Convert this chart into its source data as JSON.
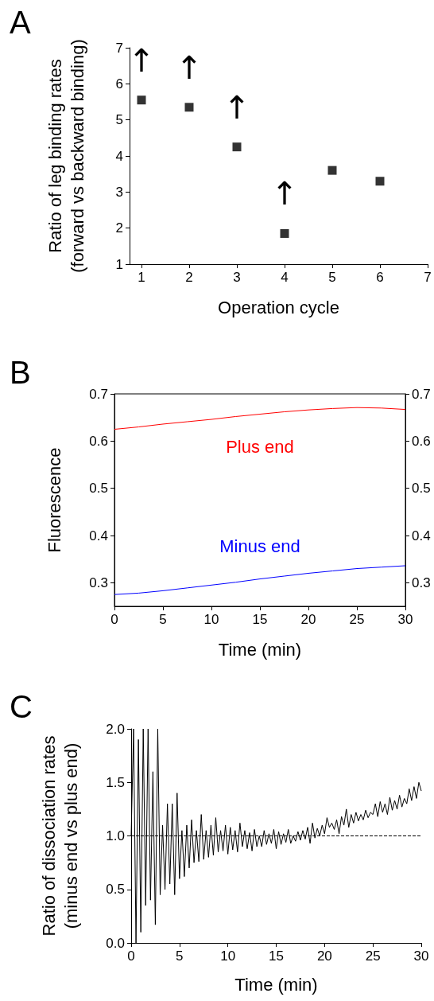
{
  "chart_data": [
    {
      "type": "scatter",
      "title": "A",
      "xlabel": "Operation cycle",
      "ylabel": "Ratio of leg binding rates\n(forward vs backward binding)",
      "x": [
        1,
        2,
        3,
        4,
        5,
        6
      ],
      "series": [
        {
          "color": "#000000",
          "values": [
            5.55,
            5.35,
            4.25,
            1.85,
            3.6,
            3.3
          ]
        }
      ],
      "marker": "square",
      "xlim": [
        0.75,
        7
      ],
      "xticks": [
        1,
        2,
        3,
        4,
        5,
        6,
        7
      ],
      "ylim": [
        1,
        7
      ],
      "yticks": [
        1,
        2,
        3,
        4,
        5,
        6,
        7
      ],
      "grid": false,
      "legend": false,
      "annotations": [
        "↑",
        "↑",
        "↑",
        "↑"
      ]
    },
    {
      "type": "line",
      "title": "B",
      "xlabel": "Time (min)",
      "ylabel": "Fluorescence",
      "series": [
        {
          "name": "Plus end",
          "color": "#ff0000",
          "x": [
            0,
            2.5,
            5,
            7.5,
            10,
            12.5,
            15,
            17.5,
            20,
            22.5,
            25,
            27.5,
            30
          ],
          "values": [
            0.625,
            0.63,
            0.636,
            0.641,
            0.646,
            0.652,
            0.657,
            0.662,
            0.666,
            0.669,
            0.671,
            0.67,
            0.667
          ]
        },
        {
          "name": "Minus end",
          "color": "#0000ff",
          "x": [
            0,
            2.5,
            5,
            7.5,
            10,
            12.5,
            15,
            17.5,
            20,
            22.5,
            25,
            27.5,
            30
          ],
          "values": [
            0.275,
            0.278,
            0.283,
            0.289,
            0.295,
            0.301,
            0.308,
            0.314,
            0.32,
            0.325,
            0.33,
            0.333,
            0.336
          ]
        }
      ],
      "xlim": [
        0,
        30
      ],
      "xticks": [
        0,
        5,
        10,
        15,
        20,
        25,
        30
      ],
      "ylim": [
        0.25,
        0.7
      ],
      "yticks": [
        0.3,
        0.4,
        0.5,
        0.6,
        0.7
      ],
      "y2lim": [
        0.25,
        0.7
      ],
      "y2ticks": [
        0.3,
        0.4,
        0.5,
        0.6,
        0.7
      ],
      "grid": false,
      "legend": false,
      "marker": "none",
      "line_style": "solid"
    },
    {
      "type": "line",
      "title": "C",
      "xlabel": "Time (min)",
      "ylabel": "Ratio of dissociation rates\n(minus end vs plus end)",
      "series": [
        {
          "color": "#000000",
          "x": [
            0,
            0.25,
            0.5,
            0.75,
            1,
            1.25,
            1.5,
            1.75,
            2,
            2.25,
            2.5,
            2.75,
            3,
            3.25,
            3.5,
            3.75,
            4,
            4.25,
            4.5,
            4.75,
            5,
            5.25,
            5.5,
            5.75,
            6,
            6.25,
            6.5,
            6.75,
            7,
            7.25,
            7.5,
            7.75,
            8,
            8.25,
            8.5,
            8.75,
            9,
            9.25,
            9.5,
            9.75,
            10,
            10.25,
            10.5,
            10.75,
            11,
            11.25,
            11.5,
            11.75,
            12,
            12.25,
            12.5,
            12.75,
            13,
            13.25,
            13.5,
            13.75,
            14,
            14.25,
            14.5,
            14.75,
            15,
            15.25,
            15.5,
            15.75,
            16,
            16.25,
            16.5,
            16.75,
            17,
            17.25,
            17.5,
            17.75,
            18,
            18.25,
            18.5,
            18.75,
            19,
            19.25,
            19.5,
            19.75,
            20,
            20.25,
            20.5,
            20.75,
            21,
            21.25,
            21.5,
            21.75,
            22,
            22.25,
            22.5,
            22.75,
            23,
            23.25,
            23.5,
            23.75,
            24,
            24.25,
            24.5,
            24.75,
            25,
            25.25,
            25.5,
            25.75,
            26,
            26.25,
            26.5,
            26.75,
            27,
            27.25,
            27.5,
            27.75,
            28,
            28.25,
            28.5,
            28.75,
            29,
            29.25,
            29.5,
            29.75,
            30
          ],
          "values": [
            1.0,
            2.0,
            0.0,
            1.9,
            0.1,
            2.0,
            0.35,
            2.0,
            0.4,
            1.6,
            0.17,
            2.0,
            0.45,
            1.1,
            0.5,
            1.3,
            0.55,
            1.3,
            0.45,
            1.4,
            0.6,
            1.05,
            0.62,
            1.1,
            0.7,
            1.15,
            0.75,
            1.05,
            0.76,
            1.2,
            0.78,
            1.05,
            0.8,
            1.1,
            0.82,
            1.17,
            0.85,
            1.05,
            0.86,
            1.1,
            0.83,
            1.08,
            0.87,
            1.05,
            0.85,
            1.12,
            0.9,
            1.05,
            0.88,
            1.03,
            0.86,
            1.06,
            0.9,
            1.0,
            0.9,
            1.05,
            0.92,
            1.02,
            0.93,
            1.06,
            0.88,
            1.04,
            0.92,
            1.02,
            0.94,
            1.06,
            0.93,
            1.0,
            0.95,
            1.04,
            0.96,
            1.05,
            0.97,
            1.08,
            0.93,
            1.12,
            0.98,
            1.07,
            1.0,
            1.1,
            1.02,
            1.17,
            1.08,
            1.12,
            1.06,
            1.15,
            1.02,
            1.18,
            1.1,
            1.25,
            1.08,
            1.2,
            1.12,
            1.22,
            1.14,
            1.2,
            1.15,
            1.24,
            1.17,
            1.22,
            1.2,
            1.3,
            1.18,
            1.32,
            1.22,
            1.3,
            1.2,
            1.36,
            1.24,
            1.33,
            1.25,
            1.38,
            1.27,
            1.35,
            1.3,
            1.44,
            1.33,
            1.46,
            1.35,
            1.5,
            1.42
          ]
        }
      ],
      "xlim": [
        0,
        30
      ],
      "xticks": [
        0,
        5,
        10,
        15,
        20,
        25,
        30
      ],
      "ylim": [
        0,
        2
      ],
      "yticks": [
        {
          "value": 0,
          "label": "0.0"
        },
        {
          "value": 0.5,
          "label": "0.5"
        },
        {
          "value": 1,
          "label": "1.0"
        },
        {
          "value": 1.5,
          "label": "1.5"
        },
        {
          "value": 2,
          "label": "2.0"
        }
      ],
      "ref_lines": [
        {
          "axis": "y",
          "value": 1,
          "label": null,
          "line_style": "dashed"
        }
      ],
      "grid": false,
      "legend": false,
      "marker": "none",
      "line_style": "solid"
    }
  ]
}
